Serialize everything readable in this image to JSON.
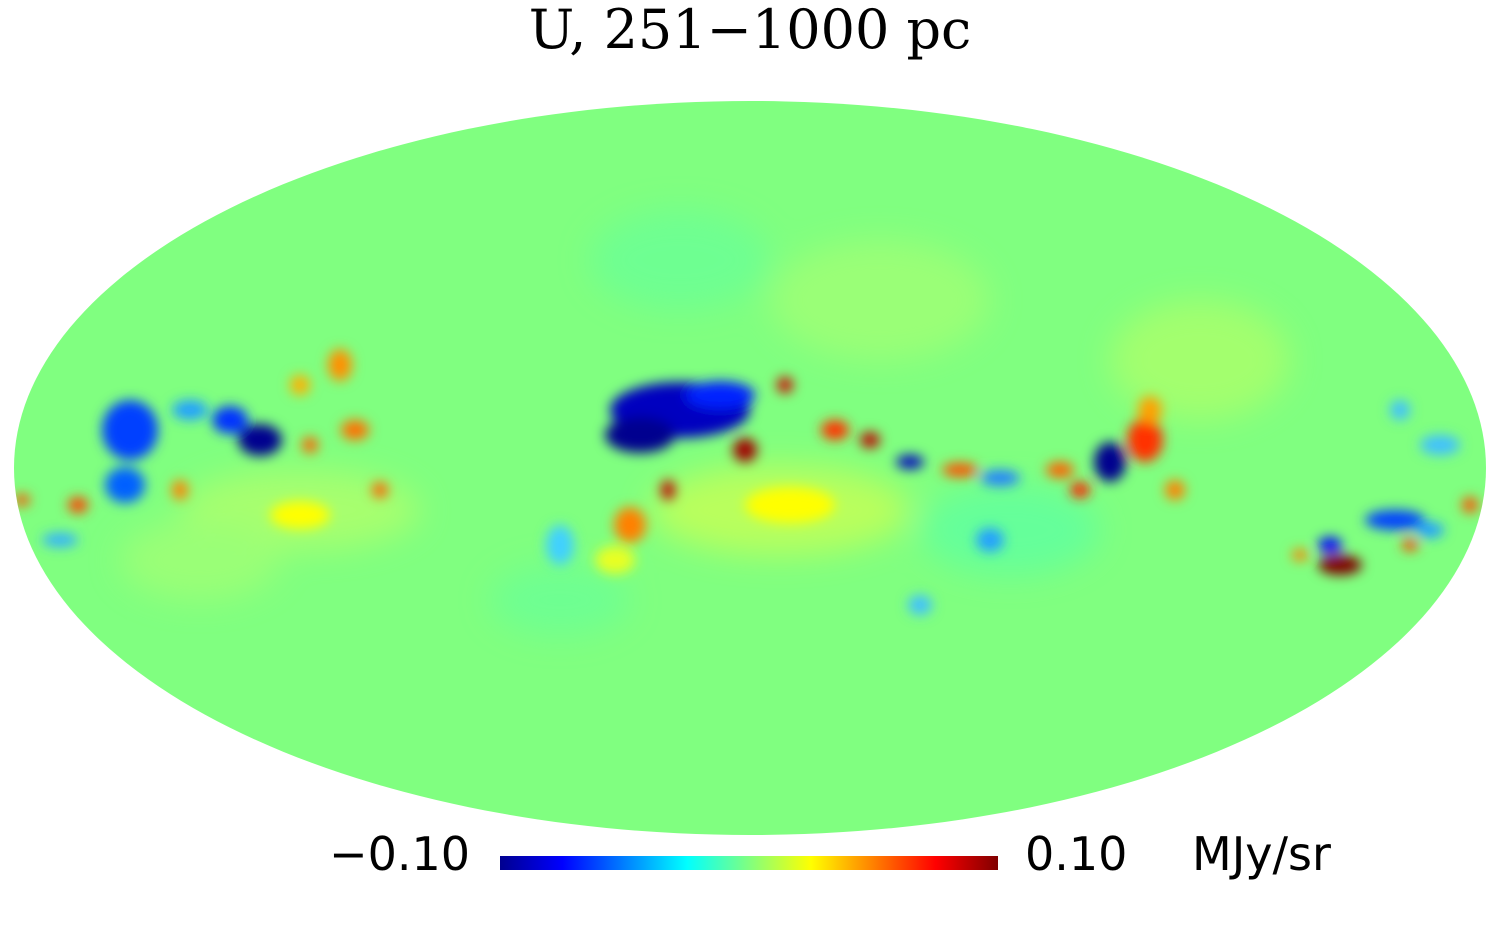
{
  "map": {
    "title": "U, 251−1000 pc",
    "projection": "mollweide",
    "background_color": "#80ff80"
  },
  "colorbar": {
    "min_label": "−0.10",
    "max_label": "0.10",
    "unit": "MJy/sr",
    "colormap": [
      "#00008f",
      "#0000ff",
      "#00ffff",
      "#80ff80",
      "#ffff00",
      "#ff0000",
      "#800000"
    ]
  }
}
